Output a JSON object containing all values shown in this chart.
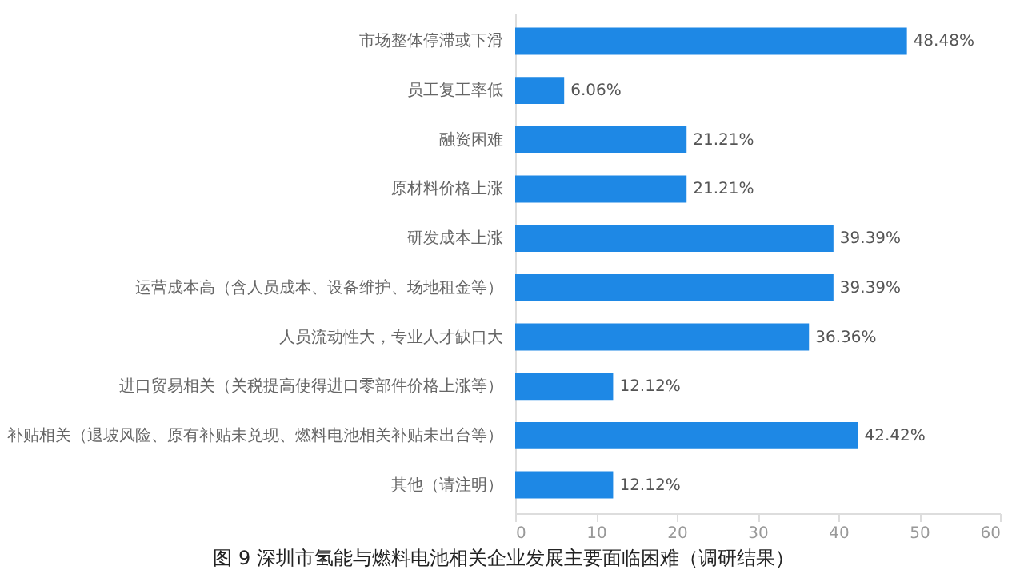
{
  "chart_data": {
    "type": "bar",
    "orientation": "horizontal",
    "title": "图 9  深圳市氢能与燃料电池相关企业发展主要面临困难（调研结果）",
    "categories": [
      "市场整体停滞或下滑",
      "员工复工率低",
      "融资困难",
      "原材料价格上涨",
      "研发成本上涨",
      "运营成本高（含人员成本、设备维护、场地租金等）",
      "人员流动性大，专业人才缺口大",
      "进口贸易相关（关税提高使得进口零部件价格上涨等）",
      "补贴相关（退坡风险、原有补贴未兑现、燃料电池相关补贴未出台等）",
      "其他（请注明）"
    ],
    "values": [
      48.48,
      6.06,
      21.21,
      21.21,
      39.39,
      39.39,
      36.36,
      12.12,
      42.42,
      12.12
    ],
    "value_labels": [
      "48.48%",
      "6.06%",
      "21.21%",
      "21.21%",
      "39.39%",
      "39.39%",
      "36.36%",
      "12.12%",
      "42.42%",
      "12.12%"
    ],
    "color": "#1e88e5",
    "xlim": [
      0,
      60
    ],
    "xticks": [
      0,
      10,
      20,
      30,
      40,
      50,
      60
    ],
    "grid": false
  }
}
